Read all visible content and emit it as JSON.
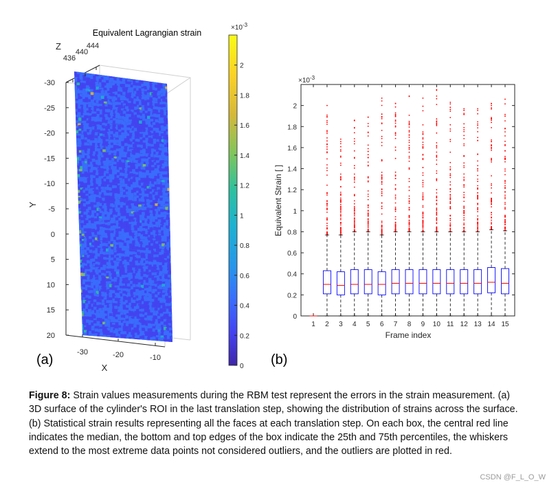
{
  "chart_data": [
    {
      "type": "heatmap",
      "title": "Equivalent Lagrangian strain",
      "z_axis_label": "Z",
      "z_ticks": [
        "436",
        "440",
        "444"
      ],
      "x_axis_label": "X",
      "x_ticks": [
        "-30",
        "-20",
        "-10"
      ],
      "y_axis_label": "Y",
      "y_ticks": [
        "-30",
        "-25",
        "-20",
        "-15",
        "-10",
        "-5",
        "0",
        "5",
        "10",
        "15",
        "20"
      ],
      "colorbar": {
        "exponent_label": "×10",
        "exponent": "-3",
        "ticks": [
          "2",
          "1.8",
          "1.6",
          "1.4",
          "1.2",
          "1",
          "0.8",
          "0.6",
          "0.4",
          "0.2",
          "0"
        ],
        "range": [
          0,
          0.0022
        ]
      },
      "colormap": [
        "#3e26a8",
        "#4443f1",
        "#3a6efd",
        "#2796ea",
        "#1eb1d2",
        "#2ec09f",
        "#7fc55d",
        "#d6b83a",
        "#fbd226",
        "#f9fb15"
      ],
      "surface_mean_strain": 0.00035
    },
    {
      "type": "box",
      "xlabel": "Frame index",
      "ylabel": "Equivalent Strain [ ]",
      "exponent_label": "×10",
      "exponent": "-3",
      "ylim": [
        0,
        0.0022
      ],
      "yticks": [
        0,
        0.0002,
        0.0004,
        0.0006,
        0.0008,
        0.001,
        0.0012,
        0.0014,
        0.0016,
        0.0018,
        0.002
      ],
      "ytick_labels": [
        "0",
        "0.2",
        "0.4",
        "0.6",
        "0.8",
        "1",
        "1.2",
        "1.4",
        "1.6",
        "1.8",
        "2"
      ],
      "categories": [
        "1",
        "2",
        "3",
        "4",
        "5",
        "6",
        "7",
        "8",
        "9",
        "10",
        "11",
        "12",
        "13",
        "14",
        "15"
      ],
      "boxes": [
        {
          "q1": 0,
          "median": 0,
          "q3": 0,
          "whisker_low": 0,
          "whisker_high": 0,
          "outlier_max": 0
        },
        {
          "q1": 0.00021,
          "median": 0.0003,
          "q3": 0.00043,
          "whisker_low": 0,
          "whisker_high": 0.00077,
          "outlier_max": 0.002
        },
        {
          "q1": 0.0002,
          "median": 0.00029,
          "q3": 0.00042,
          "whisker_low": 0,
          "whisker_high": 0.00077,
          "outlier_max": 0.00168
        },
        {
          "q1": 0.00021,
          "median": 0.0003,
          "q3": 0.00044,
          "whisker_low": 0,
          "whisker_high": 0.0008,
          "outlier_max": 0.00186
        },
        {
          "q1": 0.00021,
          "median": 0.0003,
          "q3": 0.00044,
          "whisker_low": 0,
          "whisker_high": 0.0008,
          "outlier_max": 0.00189
        },
        {
          "q1": 0.0002,
          "median": 0.0003,
          "q3": 0.00042,
          "whisker_low": 0,
          "whisker_high": 0.00077,
          "outlier_max": 0.00207
        },
        {
          "q1": 0.00021,
          "median": 0.00031,
          "q3": 0.00044,
          "whisker_low": 0,
          "whisker_high": 0.0008,
          "outlier_max": 0.00202
        },
        {
          "q1": 0.00021,
          "median": 0.00031,
          "q3": 0.00044,
          "whisker_low": 0,
          "whisker_high": 0.0008,
          "outlier_max": 0.00209
        },
        {
          "q1": 0.00021,
          "median": 0.00031,
          "q3": 0.00044,
          "whisker_low": 0,
          "whisker_high": 0.0008,
          "outlier_max": 0.00207
        },
        {
          "q1": 0.00021,
          "median": 0.00031,
          "q3": 0.00044,
          "whisker_low": 0,
          "whisker_high": 0.0008,
          "outlier_max": 0.00215
        },
        {
          "q1": 0.00021,
          "median": 0.00031,
          "q3": 0.00044,
          "whisker_low": 0,
          "whisker_high": 0.0008,
          "outlier_max": 0.00203
        },
        {
          "q1": 0.00021,
          "median": 0.00031,
          "q3": 0.00044,
          "whisker_low": 0,
          "whisker_high": 0.0008,
          "outlier_max": 0.00197
        },
        {
          "q1": 0.00021,
          "median": 0.00031,
          "q3": 0.00044,
          "whisker_low": 0,
          "whisker_high": 0.0008,
          "outlier_max": 0.00197
        },
        {
          "q1": 0.00022,
          "median": 0.00032,
          "q3": 0.00046,
          "whisker_low": 0,
          "whisker_high": 0.00082,
          "outlier_max": 0.00202
        },
        {
          "q1": 0.00021,
          "median": 0.00031,
          "q3": 0.00045,
          "whisker_low": 0,
          "whisker_high": 0.00081,
          "outlier_max": 0.00206
        }
      ],
      "box_color": "#0000ff",
      "median_color": "#ff0000",
      "outlier_color": "#ff0000"
    }
  ],
  "labels": {
    "panel_a": "(a)",
    "panel_b": "(b)"
  },
  "caption": {
    "figure_label": "Figure 8:",
    "text": "Strain values measurements during the RBM test represent the errors in the strain measurement. (a) 3D surface of the cylinder's ROI in the last translation step, showing the distribution of strains across the surface. (b) Statistical strain results representing all the faces at each translation step. On each box, the central red line indicates the median, the bottom and top edges of the box indicate the 25th and 75th percentiles, the whiskers extend to the most extreme data points not considered outliers, and the outliers are plotted in red."
  },
  "watermark": "CSDN @F_L_O_W"
}
